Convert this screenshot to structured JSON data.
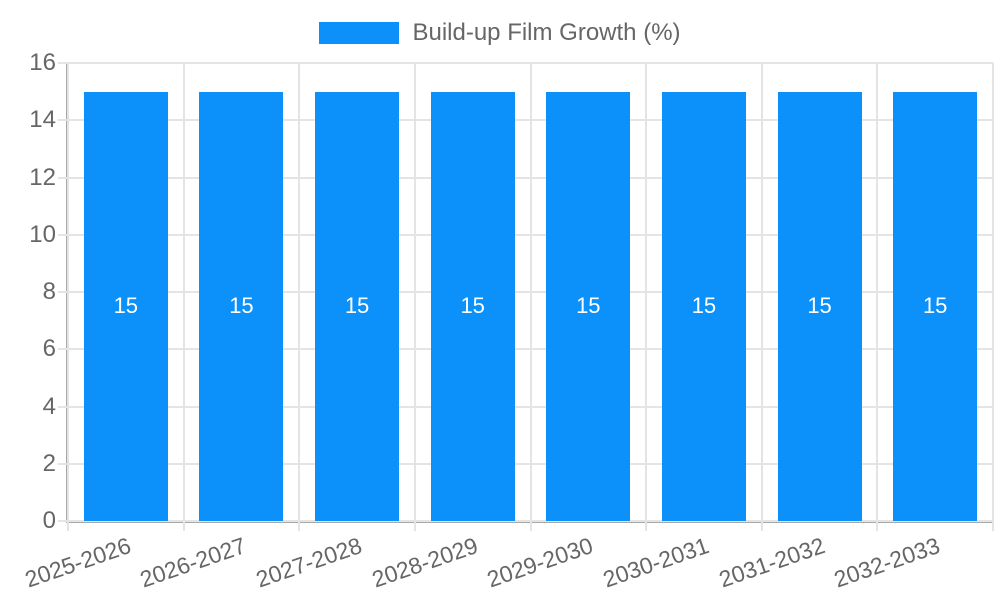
{
  "chart_data": {
    "type": "bar",
    "legend": "Build-up Film Growth (%)",
    "legend_position": "top",
    "categories": [
      "2025-2026",
      "2026-2027",
      "2027-2028",
      "2028-2029",
      "2029-2030",
      "2030-2031",
      "2031-2032",
      "2032-2033"
    ],
    "values": [
      15,
      15,
      15,
      15,
      15,
      15,
      15,
      15
    ],
    "xlabel": "",
    "ylabel": "",
    "ylim": [
      0,
      16
    ],
    "ytick_step": 2,
    "yticks": [
      0,
      2,
      4,
      6,
      8,
      10,
      12,
      14,
      16
    ],
    "ytick_labels": [
      "16",
      "14",
      "12",
      "10",
      "8",
      "6",
      "4",
      "2",
      "0"
    ],
    "grid": "horizontal-and-vertical",
    "x_label_rotation_deg": -19,
    "bar_value_labels_inside": true,
    "colors": {
      "bar": "#0C90FA",
      "axis_text": "#666666",
      "grid": "#E4E4E4",
      "axis_line": "#A8A8A8",
      "bar_label": "#FFFFFF",
      "background": "#FFFFFF"
    }
  }
}
